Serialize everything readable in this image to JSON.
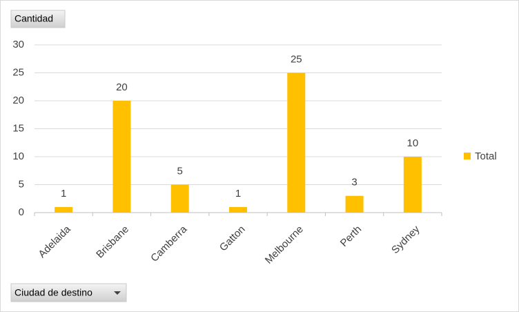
{
  "chart_data": {
    "type": "bar",
    "y_label": "Cantidad",
    "x_label": "Ciudad de destino",
    "categories": [
      "Adelaida",
      "Brisbane",
      "Camberra",
      "Gatton",
      "Melbourne",
      "Perth",
      "Sydney"
    ],
    "series": [
      {
        "name": "Total",
        "color": "#ffc000",
        "values": [
          1,
          20,
          5,
          1,
          25,
          3,
          10
        ]
      }
    ],
    "ylim": [
      0,
      30
    ],
    "yticks": [
      0,
      5,
      10,
      15,
      20,
      25,
      30
    ],
    "grid": true,
    "data_labels": true,
    "legend": "right"
  }
}
